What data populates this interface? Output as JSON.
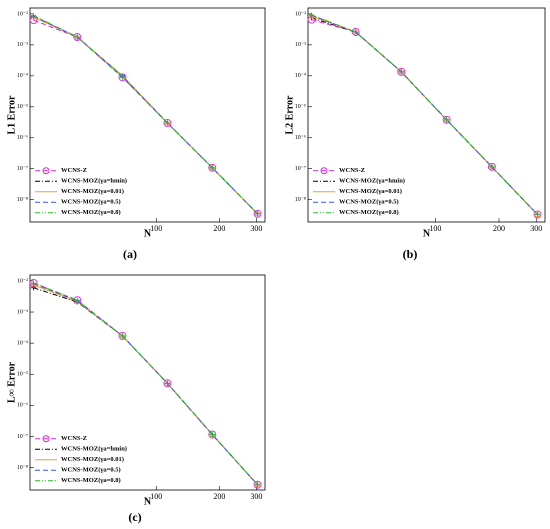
{
  "chart_data": [
    {
      "type": "line",
      "panel_label": "(a)",
      "xlabel": "N",
      "ylabel": "L1 Error",
      "log_x": true,
      "log_y": true,
      "legend": "lower left",
      "x": [
        26,
        42,
        69,
        113,
        185,
        304
      ],
      "xlim": [
        25,
        330
      ],
      "xticks": [
        100,
        200,
        300
      ],
      "ylim": [
        1.9e-09,
        0.0155
      ],
      "yticks": [
        {
          "value": 1e-08,
          "label": "10⁻⁸"
        },
        {
          "value": 1e-07,
          "label": "10⁻⁷"
        },
        {
          "value": 1e-06,
          "label": "10⁻⁶"
        },
        {
          "value": 1e-05,
          "label": "10⁻⁵"
        },
        {
          "value": 0.0001,
          "label": "10⁻⁴"
        },
        {
          "value": 0.001,
          "label": "10⁻³"
        },
        {
          "value": 0.01,
          "label": "10⁻²"
        }
      ],
      "series": [
        {
          "name": "WCNS-Z",
          "color": "#e020e0",
          "linestyle": "dashed",
          "marker": "circle",
          "values": [
            0.0063,
            0.00178,
            8.9e-05,
            3e-06,
            1.07e-07,
            3.5e-09
          ]
        },
        {
          "name": "WCNS-MOZ(γa=hmin)",
          "color": "#000000",
          "linestyle": "dashdot",
          "marker": "plus",
          "values": [
            0.0079,
            0.00178,
            0.0001,
            3e-06,
            1.07e-07,
            3.5e-09
          ]
        },
        {
          "name": "WCNS-MOZ(γa=0.01)",
          "color": "#f0a030",
          "linestyle": "solid",
          "marker": "triangle",
          "values": [
            0.0079,
            0.00178,
            0.0001,
            3e-06,
            1.07e-07,
            3.5e-09
          ]
        },
        {
          "name": "WCNS-MOZ(γa=0.5)",
          "color": "#3050ff",
          "linestyle": "dashed",
          "marker": "plus",
          "values": [
            0.0085,
            0.0018,
            9.5e-05,
            3e-06,
            1.07e-07,
            3.5e-09
          ]
        },
        {
          "name": "WCNS-MOZ(γa=0.8)",
          "color": "#20c020",
          "linestyle": "dashdotdot",
          "marker": "plus",
          "values": [
            0.0089,
            0.0018,
            8.9e-05,
            3e-06,
            1.07e-07,
            3.5e-09
          ]
        }
      ]
    },
    {
      "type": "line",
      "panel_label": "(b)",
      "xlabel": "N",
      "ylabel": "L2 Error",
      "log_x": true,
      "log_y": true,
      "legend": "lower left",
      "x": [
        26,
        42,
        69,
        113,
        185,
        304
      ],
      "xlim": [
        25,
        330
      ],
      "xticks": [
        100,
        200,
        300
      ],
      "ylim": [
        1.9e-09,
        0.0155
      ],
      "yticks": [
        {
          "value": 1e-08,
          "label": "10⁻⁸"
        },
        {
          "value": 1e-07,
          "label": "10⁻⁷"
        },
        {
          "value": 1e-06,
          "label": "10⁻⁶"
        },
        {
          "value": 1e-05,
          "label": "10⁻⁵"
        },
        {
          "value": 0.0001,
          "label": "10⁻⁴"
        },
        {
          "value": 0.001,
          "label": "10⁻³"
        },
        {
          "value": 0.01,
          "label": "10⁻²"
        }
      ],
      "series": [
        {
          "name": "WCNS-Z",
          "color": "#e020e0",
          "linestyle": "dashed",
          "marker": "circle",
          "values": [
            0.0065,
            0.0026,
            0.000135,
            3.8e-06,
            1.15e-07,
            3.3e-09
          ]
        },
        {
          "name": "WCNS-MOZ(γa=hmin)",
          "color": "#000000",
          "linestyle": "dashdot",
          "marker": "plus",
          "values": [
            0.0075,
            0.0026,
            0.000135,
            3.8e-06,
            1.15e-07,
            3.3e-09
          ]
        },
        {
          "name": "WCNS-MOZ(γa=0.01)",
          "color": "#f0a030",
          "linestyle": "solid",
          "marker": "triangle",
          "values": [
            0.0085,
            0.0026,
            0.000135,
            3.8e-06,
            1.15e-07,
            3.3e-09
          ]
        },
        {
          "name": "WCNS-MOZ(γa=0.5)",
          "color": "#3050ff",
          "linestyle": "dashed",
          "marker": "plus",
          "values": [
            0.009,
            0.0026,
            0.000135,
            3.8e-06,
            1.15e-07,
            3.3e-09
          ]
        },
        {
          "name": "WCNS-MOZ(γa=0.8)",
          "color": "#20c020",
          "linestyle": "dashdotdot",
          "marker": "plus",
          "values": [
            0.0093,
            0.0026,
            0.000135,
            3.8e-06,
            1.15e-07,
            3.3e-09
          ]
        }
      ]
    },
    {
      "type": "line",
      "panel_label": "(c)",
      "xlabel": "N",
      "ylabel": "L∞ Error",
      "log_x": true,
      "log_y": true,
      "legend": "lower left",
      "x": [
        26,
        42,
        69,
        113,
        185,
        304
      ],
      "xlim": [
        25,
        330
      ],
      "xticks": [
        100,
        200,
        300
      ],
      "ylim": [
        1.9e-09,
        0.0155
      ],
      "yticks": [
        {
          "value": 1e-08,
          "label": "10⁻⁸"
        },
        {
          "value": 1e-07,
          "label": "10⁻⁷"
        },
        {
          "value": 1e-06,
          "label": "10⁻⁶"
        },
        {
          "value": 1e-05,
          "label": "10⁻⁵"
        },
        {
          "value": 0.0001,
          "label": "10⁻⁴"
        },
        {
          "value": 0.001,
          "label": "10⁻³"
        },
        {
          "value": 0.01,
          "label": "10⁻²"
        }
      ],
      "series": [
        {
          "name": "WCNS-Z",
          "color": "#e020e0",
          "linestyle": "dashed",
          "marker": "circle",
          "values": [
            0.0086,
            0.0024,
            0.00017,
            5.1e-06,
            1.15e-07,
            2.8e-09
          ]
        },
        {
          "name": "WCNS-MOZ(γa=hmin)",
          "color": "#000000",
          "linestyle": "dashdot",
          "marker": "plus",
          "values": [
            0.006,
            0.0021,
            0.00017,
            5.1e-06,
            1.15e-07,
            2.8e-09
          ]
        },
        {
          "name": "WCNS-MOZ(γa=0.01)",
          "color": "#f0a030",
          "linestyle": "solid",
          "marker": "triangle",
          "values": [
            0.0074,
            0.0022,
            0.00017,
            5.1e-06,
            1.15e-07,
            2.8e-09
          ]
        },
        {
          "name": "WCNS-MOZ(γa=0.5)",
          "color": "#3050ff",
          "linestyle": "dashed",
          "marker": "plus",
          "values": [
            0.0082,
            0.0023,
            0.00017,
            5.1e-06,
            1.15e-07,
            2.8e-09
          ]
        },
        {
          "name": "WCNS-MOZ(γa=0.8)",
          "color": "#20c020",
          "linestyle": "dashdotdot",
          "marker": "plus",
          "values": [
            0.0085,
            0.0024,
            0.00017,
            5.1e-06,
            1.15e-07,
            2.8e-09
          ]
        }
      ]
    }
  ]
}
